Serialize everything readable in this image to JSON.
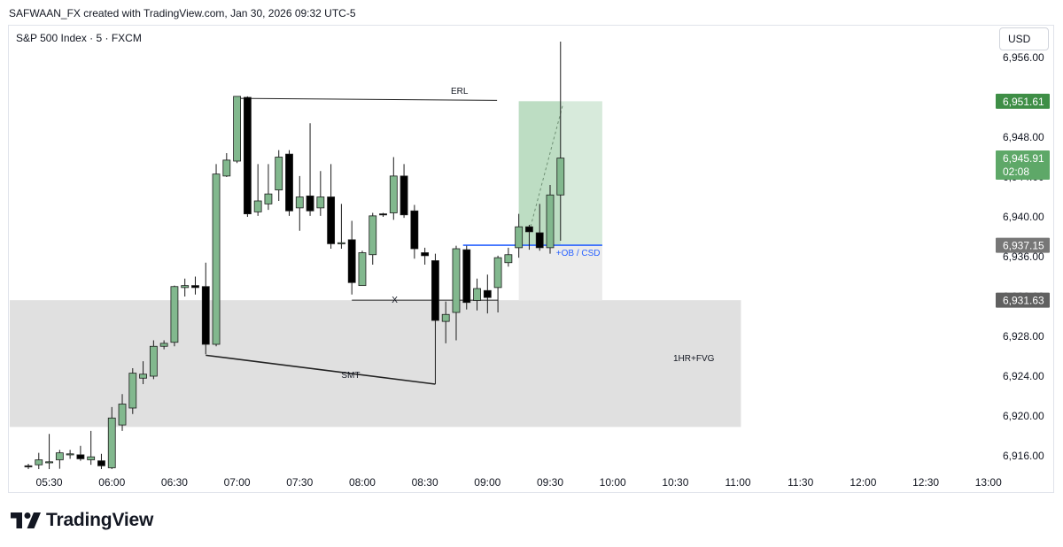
{
  "header": {
    "attribution": "SAFWAAN_FX created with TradingView.com, Jan 30, 2026 09:32 UTC-5"
  },
  "symbol": {
    "title": "S&P 500 Index · 5 · FXCM"
  },
  "currency": "USD",
  "footer": {
    "brand": "TradingView"
  },
  "colors": {
    "up": "#82b88e",
    "down": "#000000",
    "wick": "#1b1b1b",
    "fvg_zone": "#e0e0e0",
    "ob_zone": "#ebebeb",
    "target_zone": "#d7eadb",
    "target_zone_strong": "#b6d9bd",
    "ob_line": "#2962ff",
    "label_green": "#3e8e46",
    "label_green_light": "#5ea868",
    "label_gray": "#777777",
    "label_dark_gray": "#606060"
  },
  "chart_data": {
    "type": "candlestick",
    "x_unit": "5-minute bars",
    "x_tick_labels": [
      "05:30",
      "06:00",
      "06:30",
      "07:00",
      "07:30",
      "08:00",
      "08:30",
      "09:00",
      "09:30",
      "10:00",
      "10:30",
      "11:00",
      "11:30",
      "12:00",
      "12:30",
      "13:00"
    ],
    "y_tick_labels": [
      "6,956.00",
      "6,948.00",
      "6,944.00",
      "6,940.00",
      "6,936.00",
      "6,932.00",
      "6,928.00",
      "6,924.00",
      "6,920.00",
      "6,916.00"
    ],
    "ylim": [
      6914.5,
      6957.5
    ],
    "candles": [
      {
        "t": "05:20",
        "o": 6915.0,
        "h": 6915.2,
        "l": 6914.5,
        "c": 6914.9
      },
      {
        "t": "05:25",
        "o": 6915.1,
        "h": 6916.3,
        "l": 6914.6,
        "c": 6915.6
      },
      {
        "t": "05:30",
        "o": 6915.3,
        "h": 6918.2,
        "l": 6914.6,
        "c": 6915.4
      },
      {
        "t": "05:35",
        "o": 6915.6,
        "h": 6916.6,
        "l": 6914.7,
        "c": 6916.3
      },
      {
        "t": "05:40",
        "o": 6916.1,
        "h": 6916.6,
        "l": 6915.7,
        "c": 6916.2
      },
      {
        "t": "05:45",
        "o": 6916.1,
        "h": 6917.0,
        "l": 6915.5,
        "c": 6915.7
      },
      {
        "t": "05:50",
        "o": 6915.6,
        "h": 6918.5,
        "l": 6915.1,
        "c": 6915.9
      },
      {
        "t": "05:55",
        "o": 6915.5,
        "h": 6916.2,
        "l": 6914.5,
        "c": 6915.0
      },
      {
        "t": "06:00",
        "o": 6914.8,
        "h": 6920.9,
        "l": 6914.5,
        "c": 6919.8
      },
      {
        "t": "06:05",
        "o": 6919.1,
        "h": 6922.2,
        "l": 6918.5,
        "c": 6921.2
      },
      {
        "t": "06:10",
        "o": 6920.8,
        "h": 6924.8,
        "l": 6920.2,
        "c": 6924.3
      },
      {
        "t": "06:15",
        "o": 6923.8,
        "h": 6925.5,
        "l": 6923.2,
        "c": 6924.2
      },
      {
        "t": "06:20",
        "o": 6924.0,
        "h": 6927.6,
        "l": 6923.7,
        "c": 6927.0
      },
      {
        "t": "06:25",
        "o": 6927.0,
        "h": 6927.6,
        "l": 6926.7,
        "c": 6927.3
      },
      {
        "t": "06:30",
        "o": 6927.4,
        "h": 6933.1,
        "l": 6927.0,
        "c": 6933.0
      },
      {
        "t": "06:35",
        "o": 6932.9,
        "h": 6933.8,
        "l": 6932.0,
        "c": 6933.1
      },
      {
        "t": "06:40",
        "o": 6933.1,
        "h": 6934.0,
        "l": 6932.2,
        "c": 6932.9
      },
      {
        "t": "06:45",
        "o": 6933.0,
        "h": 6935.4,
        "l": 6926.2,
        "c": 6927.2
      },
      {
        "t": "06:50",
        "o": 6927.2,
        "h": 6945.3,
        "l": 6927.0,
        "c": 6944.3
      },
      {
        "t": "06:55",
        "o": 6944.1,
        "h": 6946.4,
        "l": 6944.0,
        "c": 6945.7
      },
      {
        "t": "07:00",
        "o": 6945.6,
        "h": 6952.1,
        "l": 6945.4,
        "c": 6952.1
      },
      {
        "t": "07:05",
        "o": 6952.0,
        "h": 6952.1,
        "l": 6940.0,
        "c": 6940.3
      },
      {
        "t": "07:10",
        "o": 6940.5,
        "h": 6945.3,
        "l": 6940.1,
        "c": 6941.6
      },
      {
        "t": "07:15",
        "o": 6941.3,
        "h": 6945.3,
        "l": 6940.7,
        "c": 6942.3
      },
      {
        "t": "07:20",
        "o": 6942.7,
        "h": 6946.7,
        "l": 6941.6,
        "c": 6946.0
      },
      {
        "t": "07:25",
        "o": 6946.3,
        "h": 6946.7,
        "l": 6940.1,
        "c": 6940.6
      },
      {
        "t": "07:30",
        "o": 6940.9,
        "h": 6944.1,
        "l": 6938.6,
        "c": 6942.0
      },
      {
        "t": "07:35",
        "o": 6942.1,
        "h": 6949.4,
        "l": 6940.1,
        "c": 6940.6
      },
      {
        "t": "07:40",
        "o": 6940.9,
        "h": 6944.6,
        "l": 6940.1,
        "c": 6942.0
      },
      {
        "t": "07:45",
        "o": 6942.0,
        "h": 6945.3,
        "l": 6936.8,
        "c": 6937.3
      },
      {
        "t": "07:50",
        "o": 6937.3,
        "h": 6941.3,
        "l": 6936.8,
        "c": 6937.4
      },
      {
        "t": "07:55",
        "o": 6937.7,
        "h": 6939.6,
        "l": 6932.2,
        "c": 6933.4
      },
      {
        "t": "08:00",
        "o": 6933.1,
        "h": 6936.6,
        "l": 6933.1,
        "c": 6936.4
      },
      {
        "t": "08:05",
        "o": 6936.2,
        "h": 6940.4,
        "l": 6935.2,
        "c": 6940.1
      },
      {
        "t": "08:10",
        "o": 6940.3,
        "h": 6940.4,
        "l": 6940.0,
        "c": 6940.2
      },
      {
        "t": "08:15",
        "o": 6940.4,
        "h": 6946.0,
        "l": 6939.7,
        "c": 6944.1
      },
      {
        "t": "08:20",
        "o": 6944.1,
        "h": 6945.3,
        "l": 6939.9,
        "c": 6940.2
      },
      {
        "t": "08:25",
        "o": 6940.6,
        "h": 6941.2,
        "l": 6935.8,
        "c": 6936.8
      },
      {
        "t": "08:30",
        "o": 6936.4,
        "h": 6936.9,
        "l": 6935.2,
        "c": 6936.1
      },
      {
        "t": "08:35",
        "o": 6935.6,
        "h": 6936.3,
        "l": 6923.2,
        "c": 6929.6
      },
      {
        "t": "08:40",
        "o": 6929.5,
        "h": 6931.5,
        "l": 6927.3,
        "c": 6930.2
      },
      {
        "t": "08:45",
        "o": 6930.4,
        "h": 6937.1,
        "l": 6927.6,
        "c": 6936.8
      },
      {
        "t": "08:50",
        "o": 6936.7,
        "h": 6937.1,
        "l": 6930.7,
        "c": 6931.4
      },
      {
        "t": "08:55",
        "o": 6931.6,
        "h": 6933.8,
        "l": 6930.6,
        "c": 6932.8
      },
      {
        "t": "09:00",
        "o": 6932.6,
        "h": 6934.2,
        "l": 6930.3,
        "c": 6931.9
      },
      {
        "t": "09:05",
        "o": 6932.9,
        "h": 6936.1,
        "l": 6930.4,
        "c": 6935.9
      },
      {
        "t": "09:10",
        "o": 6935.4,
        "h": 6936.9,
        "l": 6935.0,
        "c": 6936.2
      },
      {
        "t": "09:15",
        "o": 6936.9,
        "h": 6940.3,
        "l": 6935.9,
        "c": 6939.0
      },
      {
        "t": "09:20",
        "o": 6939.0,
        "h": 6939.2,
        "l": 6936.7,
        "c": 6938.5
      },
      {
        "t": "09:25",
        "o": 6938.4,
        "h": 6941.3,
        "l": 6936.6,
        "c": 6936.9
      },
      {
        "t": "09:30",
        "o": 6936.9,
        "h": 6943.2,
        "l": 6936.3,
        "c": 6942.2
      },
      {
        "t": "09:35",
        "o": 6942.2,
        "h": 6959.4,
        "l": 6937.6,
        "c": 6945.9
      }
    ],
    "price_labels": [
      {
        "value": "6,951.61",
        "sub": "",
        "style": "green"
      },
      {
        "value": "6,945.91",
        "sub": "02:08",
        "style": "green_light"
      },
      {
        "value": "6,937.15",
        "sub": "",
        "style": "gray"
      },
      {
        "value": "6,931.63",
        "sub": "",
        "style": "dark_gray"
      }
    ],
    "annotations": [
      {
        "text": "ERL",
        "kind": "liquidity level",
        "price": 6951.9
      },
      {
        "text": "+OB / CSD",
        "kind": "order block line",
        "price": 6937.15
      },
      {
        "text": "X",
        "kind": "level",
        "price": 6931.63
      },
      {
        "text": "SMT",
        "kind": "divergence line"
      },
      {
        "text": "1HR+FVG",
        "kind": "fair value gap zone",
        "from": 6918.9,
        "to": 6931.63
      }
    ]
  }
}
